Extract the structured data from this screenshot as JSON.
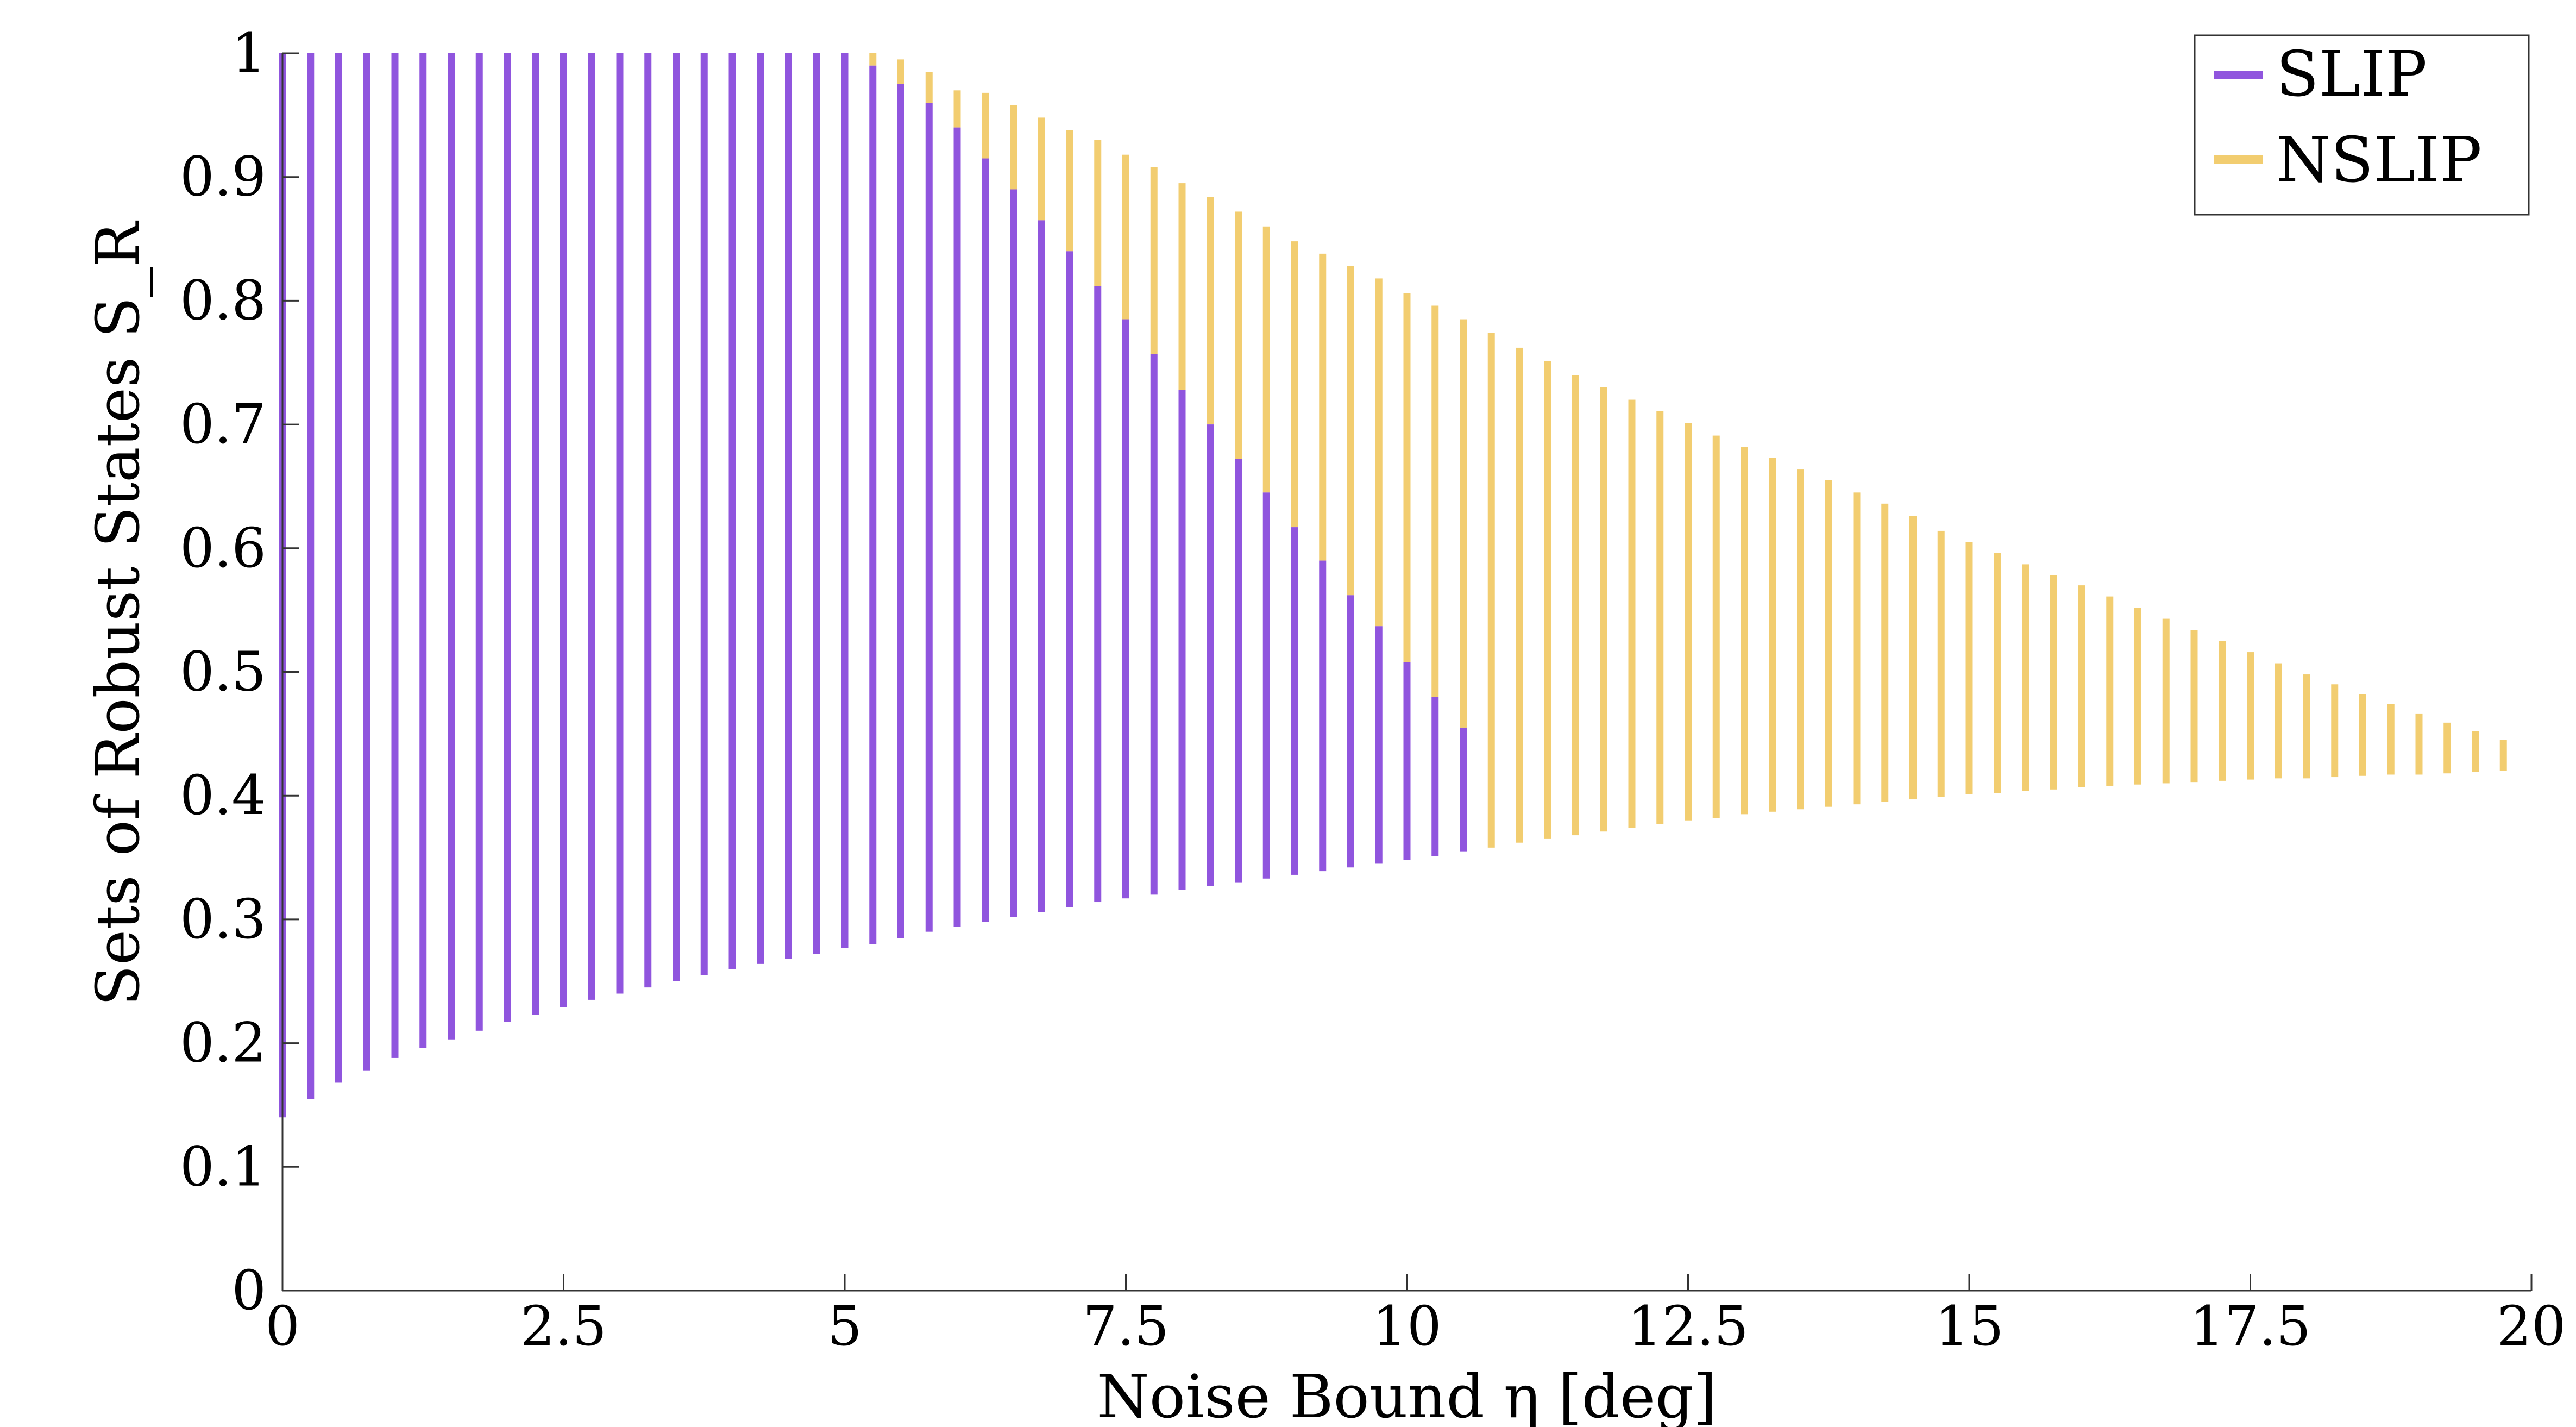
{
  "chart_data": {
    "type": "bar",
    "subtype": "floating-range",
    "title": "",
    "xlabel": "Noise Bound η [deg]",
    "ylabel": "Sets of Robust States S_R",
    "xlim": [
      0,
      20
    ],
    "ylim": [
      0,
      1
    ],
    "xticks": [
      "0",
      "2.5",
      "5",
      "7.5",
      "10",
      "12.5",
      "15",
      "17.5",
      "20"
    ],
    "yticks": [
      "0",
      "0.1",
      "0.2",
      "0.3",
      "0.4",
      "0.5",
      "0.6",
      "0.7",
      "0.8",
      "0.9",
      "1"
    ],
    "grid": false,
    "legend": {
      "placement": "top-right",
      "entries": [
        "SLIP",
        "NSLIP"
      ]
    },
    "series": [
      {
        "name": "SLIP",
        "color": "#9055de",
        "x": [
          0,
          0.25,
          0.5,
          0.75,
          1.0,
          1.25,
          1.5,
          1.75,
          2.0,
          2.25,
          2.5,
          2.75,
          3.0,
          3.25,
          3.5,
          3.75,
          4.0,
          4.25,
          4.5,
          4.75,
          5.0,
          5.25,
          5.5,
          5.75,
          6.0,
          6.25,
          6.5,
          6.75,
          7.0,
          7.25,
          7.5,
          7.75,
          8.0,
          8.25,
          8.5,
          8.75,
          9.0,
          9.25,
          9.5,
          9.75,
          10.0,
          10.25,
          10.5
        ],
        "low": [
          0.14,
          0.155,
          0.168,
          0.178,
          0.188,
          0.196,
          0.203,
          0.21,
          0.217,
          0.223,
          0.229,
          0.235,
          0.24,
          0.245,
          0.25,
          0.255,
          0.26,
          0.264,
          0.268,
          0.272,
          0.277,
          0.28,
          0.285,
          0.29,
          0.294,
          0.298,
          0.302,
          0.306,
          0.31,
          0.314,
          0.317,
          0.32,
          0.324,
          0.327,
          0.33,
          0.333,
          0.336,
          0.339,
          0.342,
          0.345,
          0.348,
          0.351,
          0.355
        ],
        "high": [
          1.0,
          1.0,
          1.0,
          1.0,
          1.0,
          1.0,
          1.0,
          1.0,
          1.0,
          1.0,
          1.0,
          1.0,
          1.0,
          1.0,
          1.0,
          1.0,
          1.0,
          1.0,
          1.0,
          1.0,
          1.0,
          0.99,
          0.975,
          0.96,
          0.94,
          0.915,
          0.89,
          0.865,
          0.84,
          0.812,
          0.785,
          0.757,
          0.728,
          0.7,
          0.672,
          0.645,
          0.617,
          0.59,
          0.562,
          0.537,
          0.508,
          0.48,
          0.455
        ]
      },
      {
        "name": "NSLIP",
        "color": "#f2cd70",
        "x": [
          5.25,
          5.5,
          5.75,
          6.0,
          6.25,
          6.5,
          6.75,
          7.0,
          7.25,
          7.5,
          7.75,
          8.0,
          8.25,
          8.5,
          8.75,
          9.0,
          9.25,
          9.5,
          9.75,
          10.0,
          10.25,
          10.5,
          10.75,
          11.0,
          11.25,
          11.5,
          11.75,
          12.0,
          12.25,
          12.5,
          12.75,
          13.0,
          13.25,
          13.5,
          13.75,
          14.0,
          14.25,
          14.5,
          14.75,
          15.0,
          15.25,
          15.5,
          15.75,
          16.0,
          16.25,
          16.5,
          16.75,
          17.0,
          17.25,
          17.5,
          17.75,
          18.0,
          18.25,
          18.5,
          18.75,
          19.0,
          19.25,
          19.5,
          19.75
        ],
        "low": [
          0.99,
          0.975,
          0.96,
          0.94,
          0.915,
          0.89,
          0.865,
          0.84,
          0.812,
          0.785,
          0.757,
          0.728,
          0.7,
          0.672,
          0.645,
          0.617,
          0.59,
          0.562,
          0.537,
          0.508,
          0.48,
          0.455,
          0.358,
          0.362,
          0.365,
          0.368,
          0.371,
          0.374,
          0.377,
          0.38,
          0.382,
          0.385,
          0.387,
          0.389,
          0.391,
          0.393,
          0.395,
          0.397,
          0.399,
          0.401,
          0.402,
          0.404,
          0.405,
          0.407,
          0.408,
          0.409,
          0.41,
          0.411,
          0.412,
          0.413,
          0.414,
          0.414,
          0.415,
          0.416,
          0.417,
          0.417,
          0.418,
          0.419,
          0.42
        ],
        "high": [
          1.0,
          0.995,
          0.985,
          0.97,
          0.968,
          0.958,
          0.948,
          0.938,
          0.93,
          0.918,
          0.908,
          0.895,
          0.884,
          0.872,
          0.86,
          0.848,
          0.838,
          0.828,
          0.818,
          0.806,
          0.796,
          0.785,
          0.774,
          0.762,
          0.751,
          0.74,
          0.73,
          0.72,
          0.711,
          0.701,
          0.691,
          0.682,
          0.673,
          0.664,
          0.655,
          0.645,
          0.636,
          0.626,
          0.614,
          0.605,
          0.596,
          0.587,
          0.578,
          0.57,
          0.561,
          0.552,
          0.543,
          0.534,
          0.525,
          0.516,
          0.507,
          0.498,
          0.49,
          0.482,
          0.474,
          0.466,
          0.459,
          0.452,
          0.445
        ]
      }
    ]
  }
}
